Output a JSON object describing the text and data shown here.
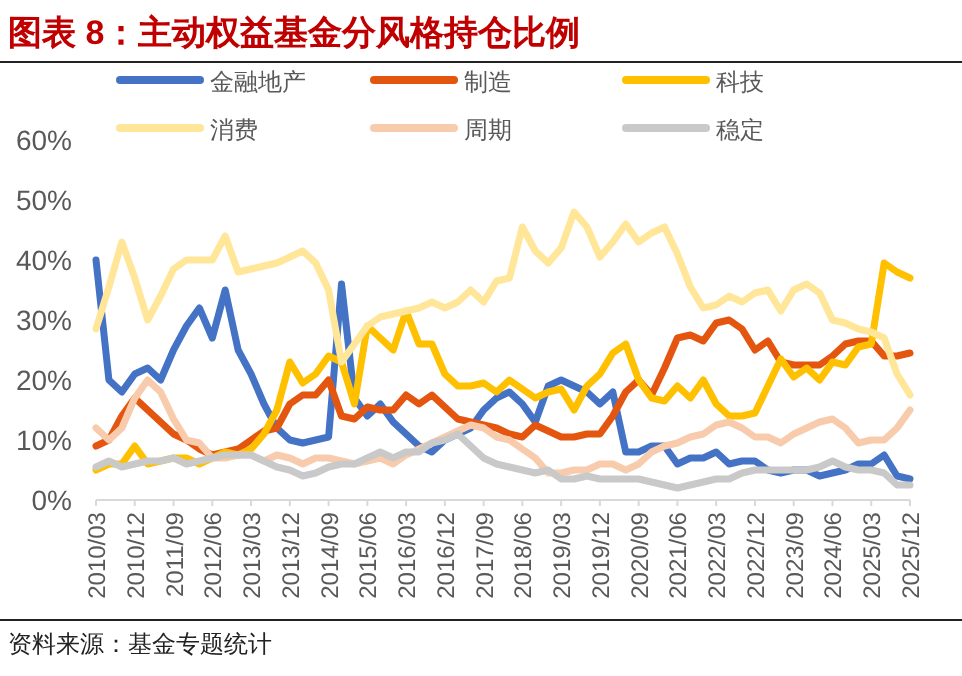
{
  "chart_data": {
    "type": "line",
    "title": "图表 8：主动权益基金分风格持仓比例",
    "categories": [
      "2010/03",
      null,
      null,
      "2010/12",
      null,
      null,
      "2011/09",
      null,
      null,
      "2012/06",
      null,
      null,
      "2013/03",
      null,
      null,
      "2013/12",
      null,
      null,
      "2014/09",
      null,
      null,
      "2015/06",
      null,
      null,
      "2016/03",
      null,
      null,
      "2016/12",
      null,
      null,
      "2017/09",
      null,
      null,
      "2018/06",
      null,
      null,
      "2019/03",
      null,
      null,
      "2019/12",
      null,
      null,
      "2020/09",
      null,
      null,
      "2021/06",
      null,
      null,
      "2022/03",
      null,
      null,
      "2022/12",
      null,
      null,
      "2023/09",
      null,
      null,
      "2024/06",
      null,
      null,
      "2025/03",
      null,
      null,
      "2025/12"
    ],
    "series": [
      {
        "name": "金融地产",
        "color": "#4472c4",
        "values": [
          40,
          20,
          18,
          21,
          22,
          20,
          25,
          29,
          32,
          27,
          35,
          25,
          21,
          16,
          12,
          10,
          9.5,
          10,
          10.5,
          36,
          17,
          14,
          16,
          13,
          11,
          9,
          8,
          10,
          11,
          12,
          15,
          17,
          18,
          16,
          13,
          19,
          20,
          19,
          18,
          16,
          18,
          8,
          8,
          9,
          9,
          6,
          7,
          7,
          8,
          6,
          6.5,
          6.5,
          5,
          4.5,
          5,
          5,
          4,
          4.5,
          5,
          6,
          6,
          7.5,
          4,
          3.5
        ]
      },
      {
        "name": "制造",
        "color": "#e4560f",
        "values": [
          9,
          10,
          14,
          17,
          15,
          13,
          11,
          10,
          8.5,
          7.5,
          8,
          8.5,
          10,
          11.5,
          12,
          16,
          17.5,
          17.5,
          20,
          14,
          13.5,
          15.5,
          15,
          15,
          17.5,
          16,
          17.5,
          15.5,
          13.5,
          13,
          12.5,
          12,
          11,
          10.5,
          12.5,
          11.5,
          10.5,
          10.5,
          11,
          11,
          14,
          18,
          20,
          17.5,
          22,
          27,
          27.5,
          26.5,
          29.5,
          30,
          28.5,
          25,
          26.5,
          23,
          22.5,
          22.5,
          22.5,
          24,
          26,
          26.5,
          26.5,
          24,
          24,
          24.5
        ]
      },
      {
        "name": "科技",
        "color": "#ffc000",
        "values": [
          5,
          6,
          6,
          9,
          6,
          6.5,
          7,
          7,
          6,
          7,
          8,
          7.5,
          8.5,
          11,
          15,
          23,
          19.5,
          21,
          24,
          23,
          16,
          29,
          27,
          25,
          31.5,
          26,
          26,
          21,
          19,
          19,
          19.5,
          18,
          20,
          18.5,
          17,
          18,
          18.5,
          15,
          19,
          21,
          24.5,
          26,
          20,
          17,
          16.5,
          19,
          17,
          20,
          16,
          14,
          14,
          14.5,
          19,
          23.5,
          20.5,
          22,
          20,
          23,
          22.5,
          25.5,
          26,
          39.5,
          38,
          37
        ]
      },
      {
        "name": "消费",
        "color": "#ffe699",
        "values": [
          28.5,
          35.5,
          43,
          37,
          30,
          34,
          38.5,
          40,
          40,
          40,
          44,
          38,
          38.5,
          39,
          39.5,
          40.5,
          41.5,
          39.5,
          35,
          23,
          26,
          29,
          30.5,
          31,
          31.5,
          32,
          33,
          32,
          33,
          35,
          33,
          36.5,
          37,
          45.5,
          41.5,
          39.5,
          42,
          48,
          45.5,
          40.5,
          43,
          46,
          43,
          44.5,
          45.5,
          41,
          35.5,
          32,
          32.5,
          34,
          33,
          34.5,
          35,
          31.5,
          35,
          36,
          34.5,
          30,
          29.5,
          28.5,
          28,
          27,
          21,
          17.5
        ]
      },
      {
        "name": "周期",
        "color": "#f8cbad",
        "values": [
          12,
          10,
          12,
          17,
          20,
          18,
          13.5,
          10,
          9.5,
          7,
          7,
          7.5,
          7.5,
          6.5,
          7.5,
          7,
          6,
          7,
          7,
          6.5,
          6,
          6.5,
          7,
          6,
          7.5,
          8.5,
          9.5,
          10.5,
          11.5,
          12.5,
          12,
          10.5,
          10,
          8.5,
          7,
          4.5,
          4.5,
          5,
          5,
          6,
          6,
          5,
          6,
          8,
          9,
          9.5,
          10.5,
          11,
          12.5,
          13,
          12,
          10.5,
          10.5,
          9.5,
          11,
          12,
          13,
          13.5,
          12,
          9.5,
          10,
          10,
          12,
          15
        ]
      },
      {
        "name": "稳定",
        "color": "#c9c9c9",
        "values": [
          5.5,
          6.5,
          5.5,
          6,
          6.5,
          6.5,
          7,
          6,
          6.5,
          7,
          7.5,
          7.5,
          7.5,
          6.5,
          5.5,
          5,
          4,
          4.5,
          5.5,
          6,
          6,
          7,
          8,
          7,
          8,
          8,
          9.5,
          10,
          11,
          9,
          7,
          6,
          5.5,
          5,
          4.5,
          5,
          3.5,
          3.5,
          4,
          3.5,
          3.5,
          3.5,
          3.5,
          3,
          2.5,
          2,
          2.5,
          3,
          3.5,
          3.5,
          4.5,
          5,
          5,
          5,
          5,
          5,
          5.5,
          6.5,
          5.5,
          5,
          5,
          4.5,
          2.5,
          2.5
        ]
      }
    ],
    "ylim": [
      0,
      60
    ],
    "yticks": [
      {
        "value": 0,
        "label": "0%"
      },
      {
        "value": 10,
        "label": "10%"
      },
      {
        "value": 20,
        "label": "20%"
      },
      {
        "value": 30,
        "label": "30%"
      },
      {
        "value": 40,
        "label": "40%"
      },
      {
        "value": 50,
        "label": "50%"
      },
      {
        "value": 60,
        "label": "60%"
      }
    ],
    "legend": "top",
    "grid": false,
    "marker": "none",
    "line_style": "solid",
    "annotations": [
      "资料来源：基金专题统计"
    ]
  }
}
